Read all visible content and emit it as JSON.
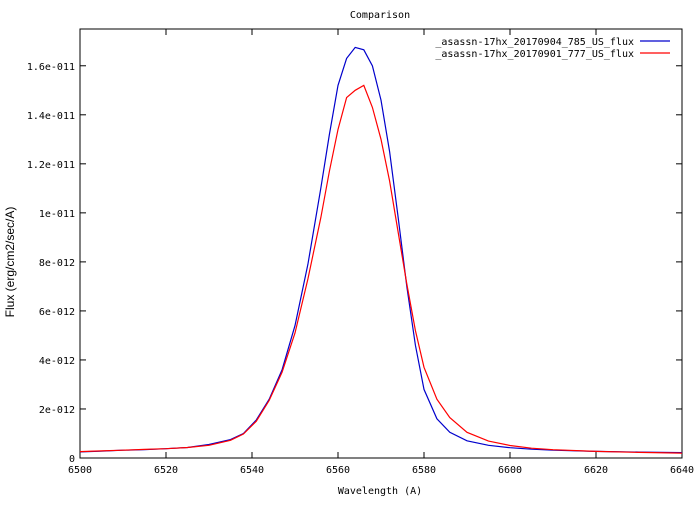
{
  "chart_data": {
    "type": "line",
    "title": "Comparison",
    "xlabel": "Wavelength (A)",
    "ylabel": "Flux (erg/cm2/sec/A)",
    "xlim": [
      6500,
      6640
    ],
    "ylim": [
      0,
      1.75e-11
    ],
    "grid": false,
    "legend_position": "top-right",
    "x_ticks": [
      6500,
      6520,
      6540,
      6560,
      6580,
      6600,
      6620,
      6640
    ],
    "x_tick_labels": [
      "6500",
      "6520",
      "6540",
      "6560",
      "6580",
      "6600",
      "6620",
      "6640"
    ],
    "y_ticks": [
      0,
      2e-12,
      4e-12,
      6e-12,
      8e-12,
      1e-11,
      1.2e-11,
      1.4e-11,
      1.6e-11
    ],
    "y_tick_labels": [
      "0",
      "2e-012",
      "4e-012",
      "6e-012",
      "8e-012",
      "1e-011",
      "1.2e-011",
      "1.4e-011",
      "1.6e-011"
    ],
    "series": [
      {
        "name": "_asassn-17hx_20170904_785_US_flux",
        "color": "#0000cc",
        "x": [
          6500,
          6505,
          6510,
          6515,
          6520,
          6525,
          6530,
          6535,
          6538,
          6541,
          6544,
          6547,
          6550,
          6553,
          6556,
          6558,
          6560,
          6562,
          6564,
          6566,
          6568,
          6570,
          6572,
          6574,
          6576,
          6578,
          6580,
          6583,
          6586,
          6590,
          6595,
          6600,
          6605,
          6610,
          6620,
          6630,
          6640
        ],
        "y": [
          2.5e-13,
          2.8e-13,
          3.2e-13,
          3.4e-13,
          3.8e-13,
          4.3e-13,
          5.5e-13,
          7.5e-13,
          1e-12,
          1.55e-12,
          2.4e-12,
          3.6e-12,
          5.4e-12,
          7.9e-12,
          1.1e-11,
          1.32e-11,
          1.52e-11,
          1.63e-11,
          1.675e-11,
          1.665e-11,
          1.6e-11,
          1.46e-11,
          1.25e-11,
          9.8e-12,
          7e-12,
          4.6e-12,
          2.8e-12,
          1.6e-12,
          1.05e-12,
          7e-13,
          5.2e-13,
          4.2e-13,
          3.6e-13,
          3.2e-13,
          2.7e-13,
          2.4e-13,
          2.2e-13
        ]
      },
      {
        "name": "_asassn-17hx_20170901_777_US_flux",
        "color": "#ff0000",
        "x": [
          6500,
          6505,
          6510,
          6515,
          6520,
          6525,
          6530,
          6535,
          6538,
          6541,
          6544,
          6547,
          6550,
          6553,
          6556,
          6558,
          6560,
          6562,
          6564,
          6566,
          6568,
          6570,
          6572,
          6574,
          6576,
          6578,
          6580,
          6583,
          6586,
          6590,
          6595,
          6600,
          6605,
          6610,
          6620,
          6630,
          6640
        ],
        "y": [
          2.6e-13,
          2.9e-13,
          3.2e-13,
          3.5e-13,
          3.8e-13,
          4.3e-13,
          5.2e-13,
          7.2e-13,
          9.8e-13,
          1.5e-12,
          2.35e-12,
          3.5e-12,
          5.1e-12,
          7.3e-12,
          9.8e-12,
          1.17e-11,
          1.34e-11,
          1.47e-11,
          1.5e-11,
          1.52e-11,
          1.43e-11,
          1.3e-11,
          1.13e-11,
          9.2e-12,
          7.1e-12,
          5.2e-12,
          3.7e-12,
          2.4e-12,
          1.65e-12,
          1.05e-12,
          6.9e-13,
          5.1e-13,
          4e-13,
          3.4e-13,
          2.7e-13,
          2.3e-13,
          2e-13
        ]
      }
    ]
  }
}
